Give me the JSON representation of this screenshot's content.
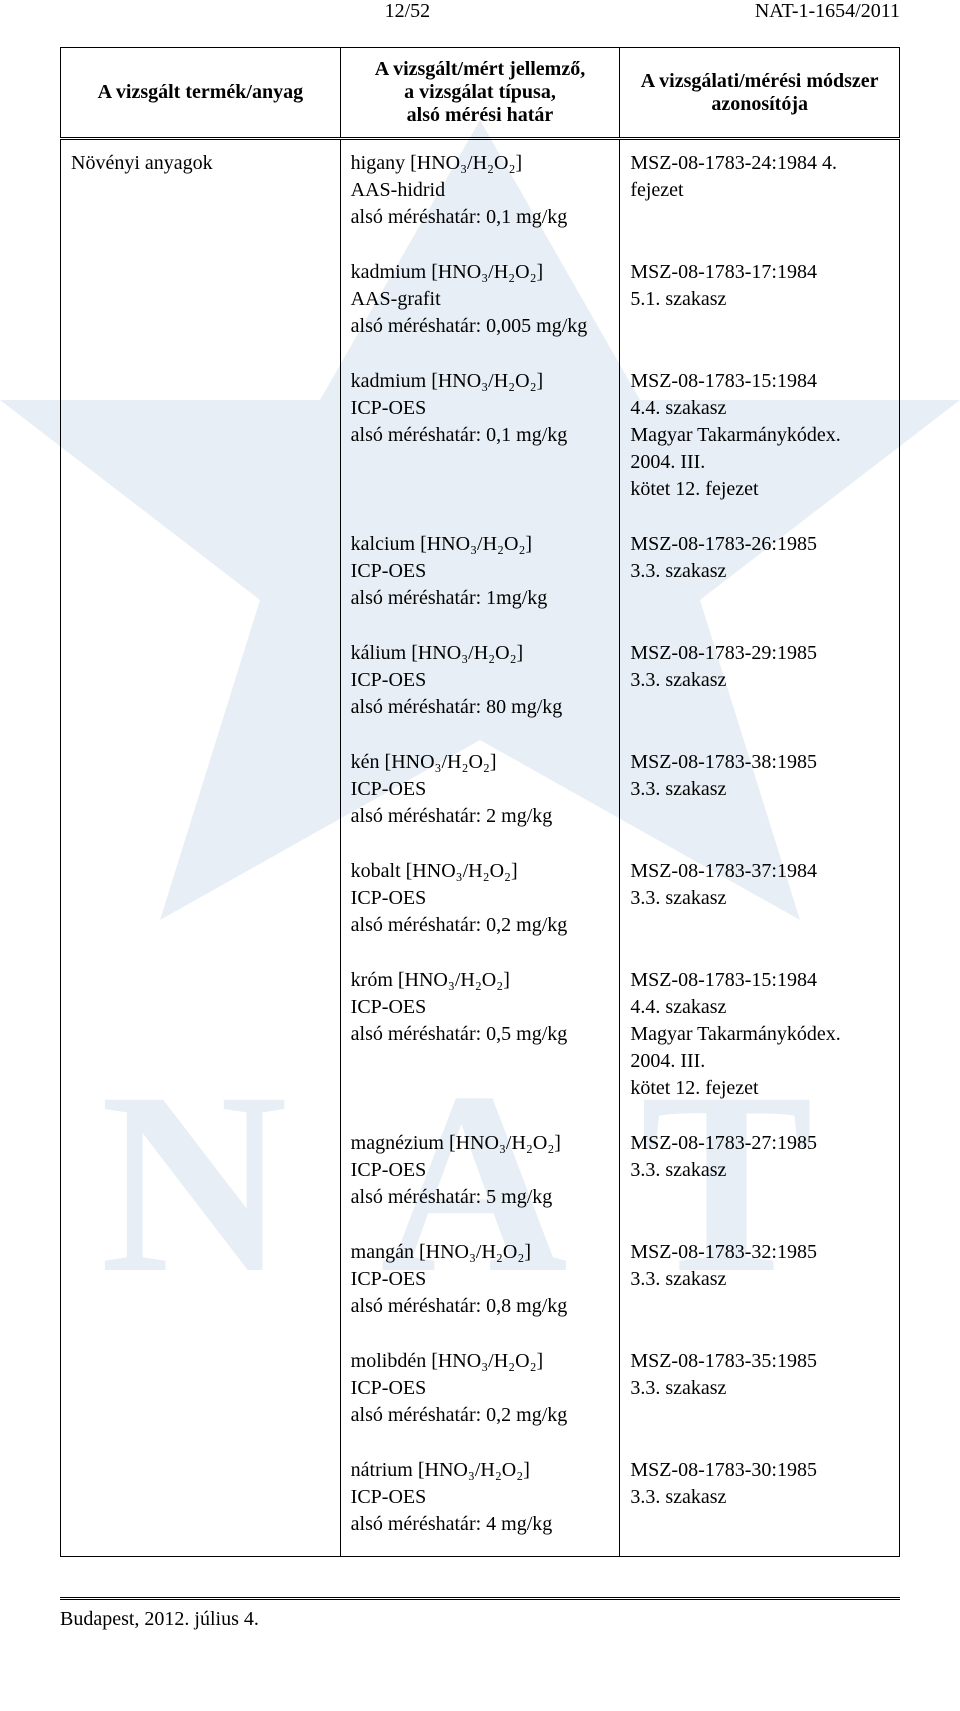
{
  "header": {
    "page_num": "12/52",
    "doc_id": "NAT-1-1654/2011"
  },
  "table": {
    "head": {
      "c1": "A vizsgált termék/anyag",
      "c2a": "A vizsgált/mért jellemző,",
      "c2b": "a vizsgálat típusa,",
      "c2c": "alsó mérési határ",
      "c3a": "A vizsgálati/mérési módszer",
      "c3b": "azonosítója"
    },
    "first_col": "Növényi anyagok",
    "rows": [
      {
        "mid": [
          "higany [HNO₃/H₂O₂]",
          "AAS-hidrid",
          "alsó méréshatár: 0,1 mg/kg"
        ],
        "right": [
          "MSZ-08-1783-24:1984 4. fejezet"
        ]
      },
      {
        "mid": [
          "kadmium [HNO₃/H₂O₂]",
          "AAS-grafit",
          "alsó méréshatár: 0,005 mg/kg"
        ],
        "right": [
          "MSZ-08-1783-17:1984",
          "5.1. szakasz"
        ]
      },
      {
        "mid": [
          "kadmium [HNO₃/H₂O₂]",
          "ICP-OES",
          "alsó méréshatár: 0,1 mg/kg"
        ],
        "right": [
          "MSZ-08-1783-15:1984",
          "4.4. szakasz",
          "Magyar Takarmánykódex. 2004. III.",
          "kötet 12. fejezet"
        ]
      },
      {
        "mid": [
          "kalcium [HNO₃/H₂O₂]",
          "ICP-OES",
          "alsó méréshatár: 1mg/kg"
        ],
        "right": [
          "MSZ-08-1783-26:1985",
          "3.3. szakasz"
        ]
      },
      {
        "mid": [
          "kálium [HNO₃/H₂O₂]",
          "ICP-OES",
          "alsó méréshatár: 80 mg/kg"
        ],
        "right": [
          "MSZ-08-1783-29:1985",
          "3.3. szakasz"
        ]
      },
      {
        "mid": [
          "kén [HNO₃/H₂O₂]",
          "ICP-OES",
          "alsó méréshatár: 2 mg/kg"
        ],
        "right": [
          "MSZ-08-1783-38:1985",
          "3.3. szakasz"
        ]
      },
      {
        "mid": [
          "kobalt [HNO₃/H₂O₂]",
          "ICP-OES",
          "alsó méréshatár: 0,2 mg/kg"
        ],
        "right": [
          "MSZ-08-1783-37:1984",
          "3.3. szakasz"
        ]
      },
      {
        "mid": [
          "króm [HNO₃/H₂O₂]",
          "ICP-OES",
          "alsó méréshatár: 0,5 mg/kg"
        ],
        "right": [
          "MSZ-08-1783-15:1984",
          "4.4. szakasz",
          "Magyar Takarmánykódex. 2004. III.",
          "kötet 12. fejezet"
        ]
      },
      {
        "mid": [
          "magnézium [HNO₃/H₂O₂]",
          "ICP-OES",
          "alsó méréshatár: 5 mg/kg"
        ],
        "right": [
          "MSZ-08-1783-27:1985",
          "3.3. szakasz"
        ]
      },
      {
        "mid": [
          "mangán [HNO₃/H₂O₂]",
          "ICP-OES",
          "alsó méréshatár: 0,8 mg/kg"
        ],
        "right": [
          "MSZ-08-1783-32:1985",
          "3.3. szakasz"
        ]
      },
      {
        "mid": [
          "molibdén [HNO₃/H₂O₂]",
          "ICP-OES",
          "alsó méréshatár: 0,2 mg/kg"
        ],
        "right": [
          "MSZ-08-1783-35:1985",
          "3.3. szakasz"
        ]
      },
      {
        "mid": [
          "nátrium [HNO₃/H₂O₂]",
          "ICP-OES",
          "alsó méréshatár: 4 mg/kg"
        ],
        "right": [
          "MSZ-08-1783-30:1985",
          "3.3. szakasz"
        ]
      }
    ]
  },
  "footer": "Budapest, 2012. július 4.",
  "colors": {
    "text": "#000000",
    "bg": "#ffffff",
    "watermark": "#7fa7c9"
  }
}
